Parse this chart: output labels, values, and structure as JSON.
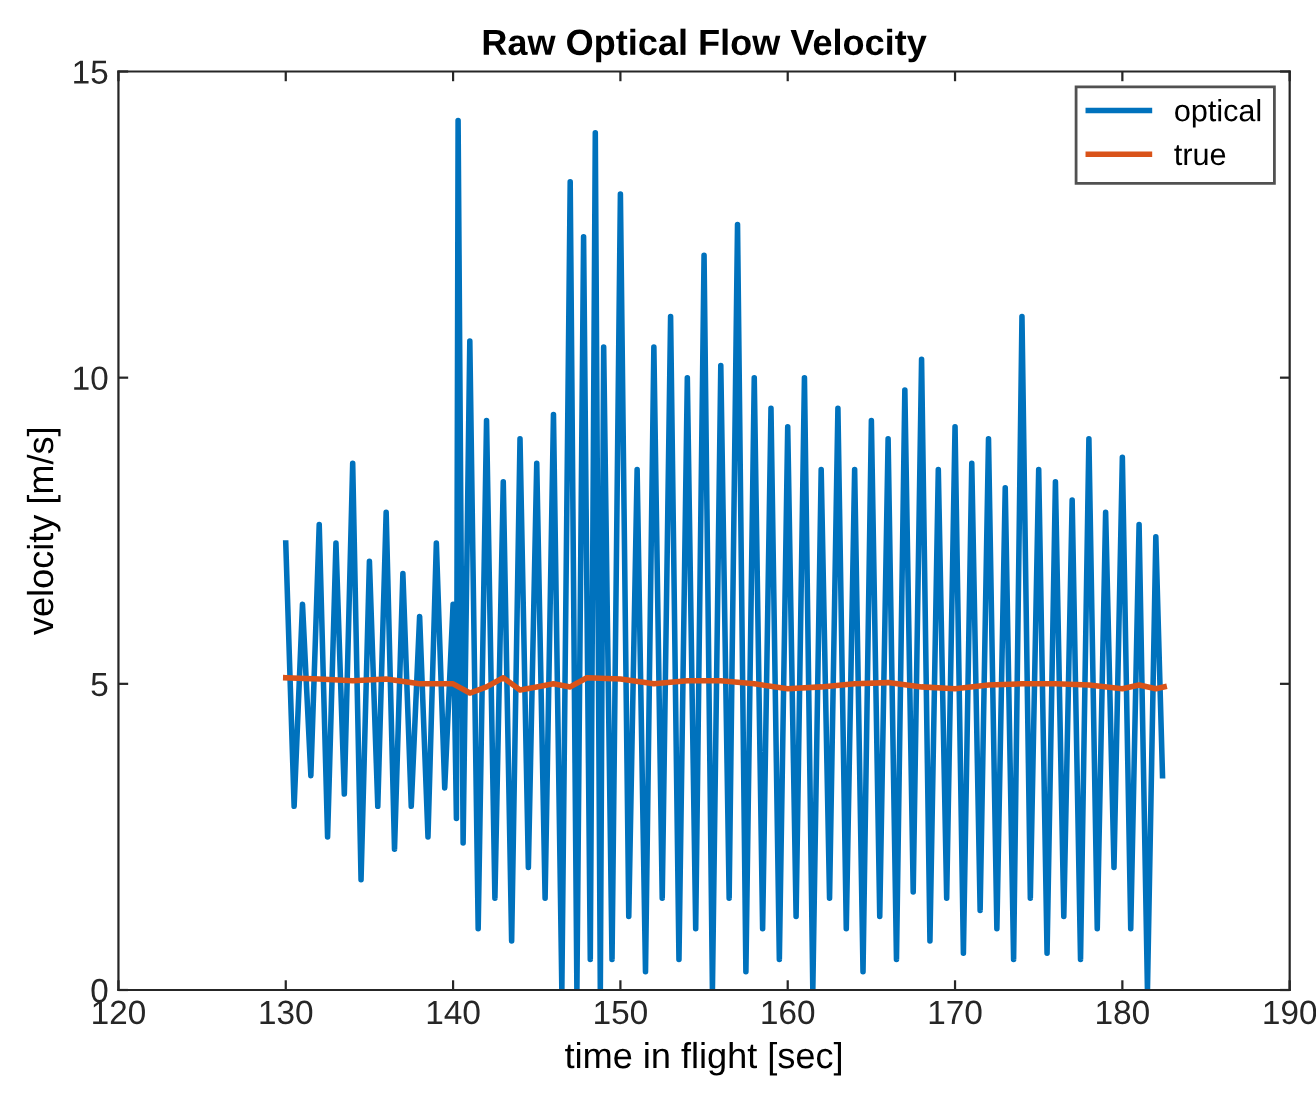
{
  "chart_data": {
    "type": "line",
    "title": "Raw Optical Flow Velocity",
    "xlabel": "time in flight [sec]",
    "ylabel": "velocity [m/s]",
    "xlim": [
      120,
      190
    ],
    "ylim": [
      0,
      15
    ],
    "xticks": [
      120,
      130,
      140,
      150,
      160,
      170,
      180,
      190
    ],
    "yticks": [
      0,
      5,
      10,
      15
    ],
    "grid": false,
    "legend": "top right",
    "line_style": "solid",
    "marker": "none",
    "series": [
      {
        "name": "optical",
        "color": "#0072bd",
        "x": [
          130,
          130.5,
          131,
          131.5,
          132,
          132.5,
          133,
          133.5,
          134,
          134.5,
          135,
          135.5,
          136,
          136.5,
          137,
          137.5,
          138,
          138.5,
          139,
          139.5,
          140,
          140.2,
          140.3,
          140.6,
          141,
          141.5,
          142,
          142.5,
          143,
          143.5,
          144,
          144.5,
          145,
          145.5,
          146,
          146.5,
          147,
          147.4,
          147.8,
          148.2,
          148.5,
          148.8,
          149,
          149.5,
          150,
          150.5,
          151,
          151.5,
          152,
          152.5,
          153,
          153.5,
          154,
          154.5,
          155,
          155.5,
          156,
          156.5,
          157,
          157.5,
          158,
          158.5,
          159,
          159.5,
          160,
          160.5,
          161,
          161.5,
          162,
          162.5,
          163,
          163.5,
          164,
          164.5,
          165,
          165.5,
          166,
          166.5,
          167,
          167.5,
          168,
          168.5,
          169,
          169.5,
          170,
          170.5,
          171,
          171.5,
          172,
          172.5,
          173,
          173.5,
          174,
          174.5,
          175,
          175.5,
          176,
          176.5,
          177,
          177.5,
          178,
          178.5,
          179,
          179.5,
          180,
          180.5,
          181,
          181.5,
          182,
          182.4
        ],
        "values": [
          7.3,
          3.0,
          6.3,
          3.5,
          7.6,
          2.5,
          7.3,
          3.2,
          8.6,
          1.8,
          7.0,
          3.0,
          7.8,
          2.3,
          6.8,
          3.0,
          6.1,
          2.5,
          7.3,
          3.3,
          6.3,
          2.8,
          14.2,
          2.4,
          10.6,
          1.0,
          9.3,
          1.5,
          8.3,
          0.8,
          9.0,
          2.0,
          8.6,
          1.5,
          9.4,
          0.0,
          13.2,
          0.0,
          12.3,
          0.5,
          14.0,
          0.0,
          10.5,
          0.5,
          13.0,
          1.2,
          8.5,
          0.3,
          10.5,
          1.5,
          11.0,
          0.5,
          10.0,
          1.0,
          12.0,
          0.0,
          10.2,
          1.5,
          12.5,
          0.3,
          10.0,
          1.0,
          9.5,
          0.5,
          9.2,
          1.2,
          10.0,
          0.0,
          8.5,
          1.5,
          9.5,
          1.0,
          8.5,
          0.3,
          9.3,
          1.2,
          9.0,
          0.5,
          9.8,
          1.6,
          10.3,
          0.8,
          8.5,
          1.5,
          9.2,
          0.6,
          8.6,
          1.3,
          9.0,
          1.0,
          8.2,
          0.5,
          11.0,
          1.5,
          8.5,
          0.6,
          8.3,
          1.2,
          8.0,
          0.5,
          9.0,
          1.0,
          7.8,
          2.0,
          8.7,
          1.0,
          7.6,
          0.0,
          7.4,
          3.5
        ]
      },
      {
        "name": "true",
        "color": "#d95319",
        "x": [
          130,
          132,
          134,
          136,
          138,
          140,
          141,
          142,
          143,
          144,
          145,
          146,
          147,
          148,
          150,
          152,
          154,
          156,
          158,
          160,
          162,
          164,
          166,
          168,
          170,
          172,
          174,
          176,
          178,
          180,
          181,
          182,
          182.5
        ],
        "values": [
          5.1,
          5.08,
          5.05,
          5.08,
          5.0,
          5.0,
          4.85,
          4.95,
          5.1,
          4.9,
          4.95,
          5.0,
          4.95,
          5.1,
          5.08,
          5.0,
          5.05,
          5.05,
          5.0,
          4.92,
          4.95,
          5.0,
          5.02,
          4.95,
          4.92,
          4.98,
          5.0,
          5.0,
          4.98,
          4.92,
          4.98,
          4.92,
          4.95
        ]
      }
    ]
  }
}
